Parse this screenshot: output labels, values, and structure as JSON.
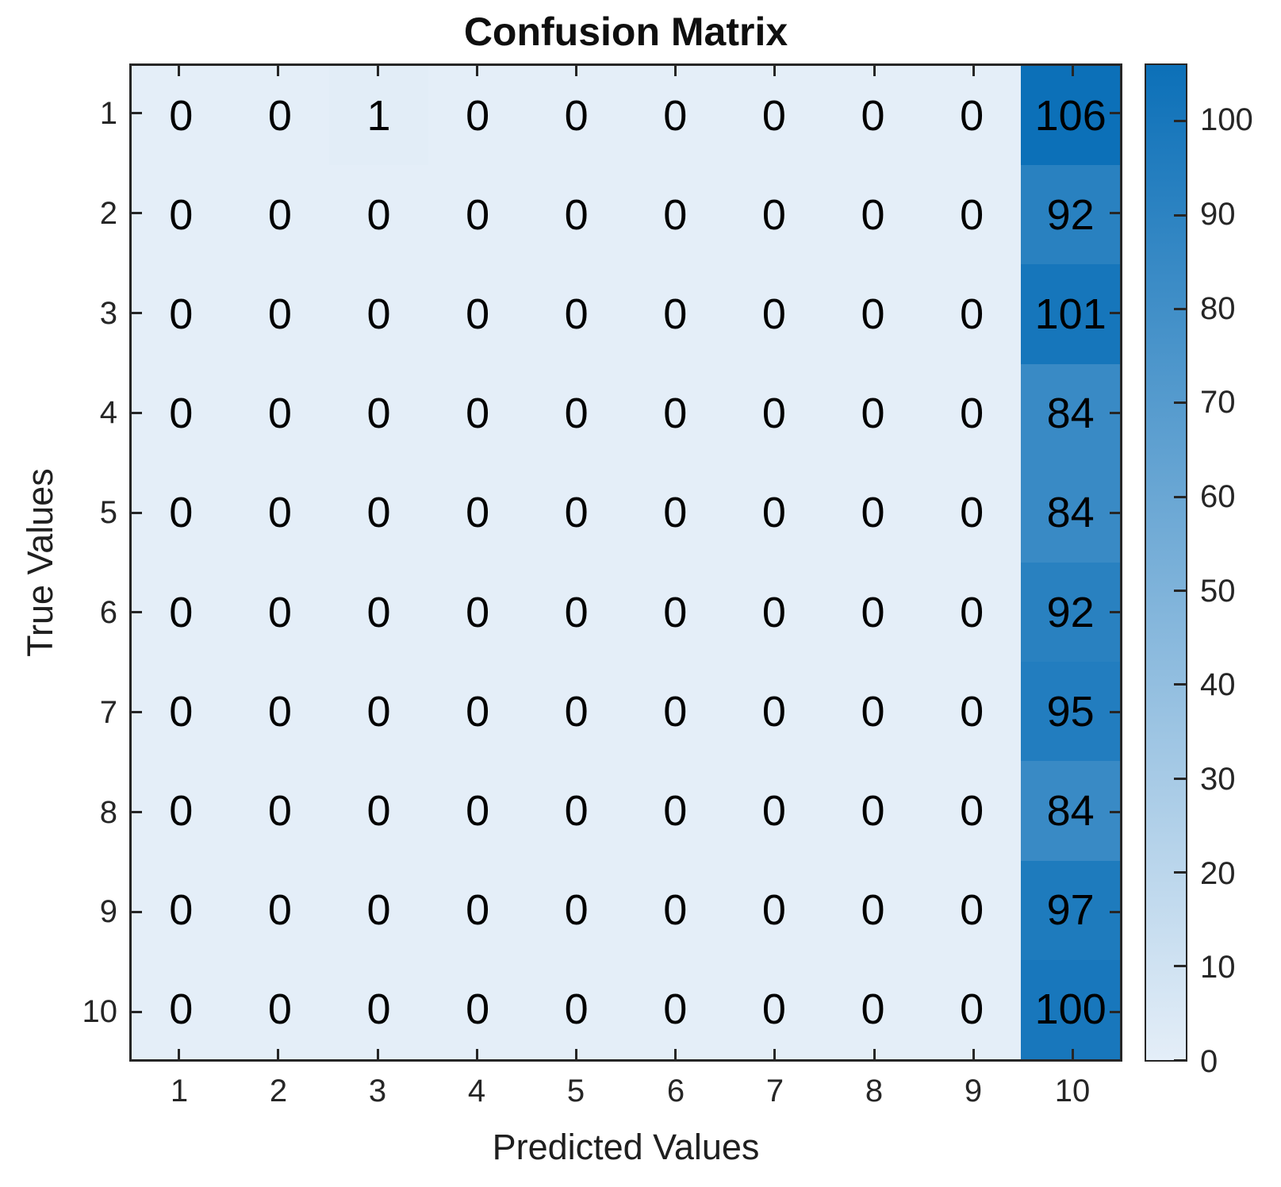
{
  "chart_data": {
    "type": "heatmap",
    "title": "Confusion Matrix",
    "xlabel": "Predicted Values",
    "ylabel": "True Values",
    "x_tick_labels": [
      "1",
      "2",
      "3",
      "4",
      "5",
      "6",
      "7",
      "8",
      "9",
      "10"
    ],
    "y_tick_labels": [
      "1",
      "2",
      "3",
      "4",
      "5",
      "6",
      "7",
      "8",
      "9",
      "10"
    ],
    "matrix": [
      [
        0,
        0,
        1,
        0,
        0,
        0,
        0,
        0,
        0,
        106
      ],
      [
        0,
        0,
        0,
        0,
        0,
        0,
        0,
        0,
        0,
        92
      ],
      [
        0,
        0,
        0,
        0,
        0,
        0,
        0,
        0,
        0,
        101
      ],
      [
        0,
        0,
        0,
        0,
        0,
        0,
        0,
        0,
        0,
        84
      ],
      [
        0,
        0,
        0,
        0,
        0,
        0,
        0,
        0,
        0,
        84
      ],
      [
        0,
        0,
        0,
        0,
        0,
        0,
        0,
        0,
        0,
        92
      ],
      [
        0,
        0,
        0,
        0,
        0,
        0,
        0,
        0,
        0,
        95
      ],
      [
        0,
        0,
        0,
        0,
        0,
        0,
        0,
        0,
        0,
        84
      ],
      [
        0,
        0,
        0,
        0,
        0,
        0,
        0,
        0,
        0,
        97
      ],
      [
        0,
        0,
        0,
        0,
        0,
        0,
        0,
        0,
        0,
        100
      ]
    ],
    "value_range": [
      0,
      106
    ],
    "colorbar_ticks": [
      0,
      10,
      20,
      30,
      40,
      50,
      60,
      70,
      80,
      90,
      100
    ],
    "colorbar_position": "right",
    "grid": false,
    "legend": "none",
    "colors": {
      "low": "#e4eef8",
      "high": "#0c70b8",
      "cell_text": "#000000",
      "axis": "#262626",
      "background": "#ffffff"
    }
  }
}
